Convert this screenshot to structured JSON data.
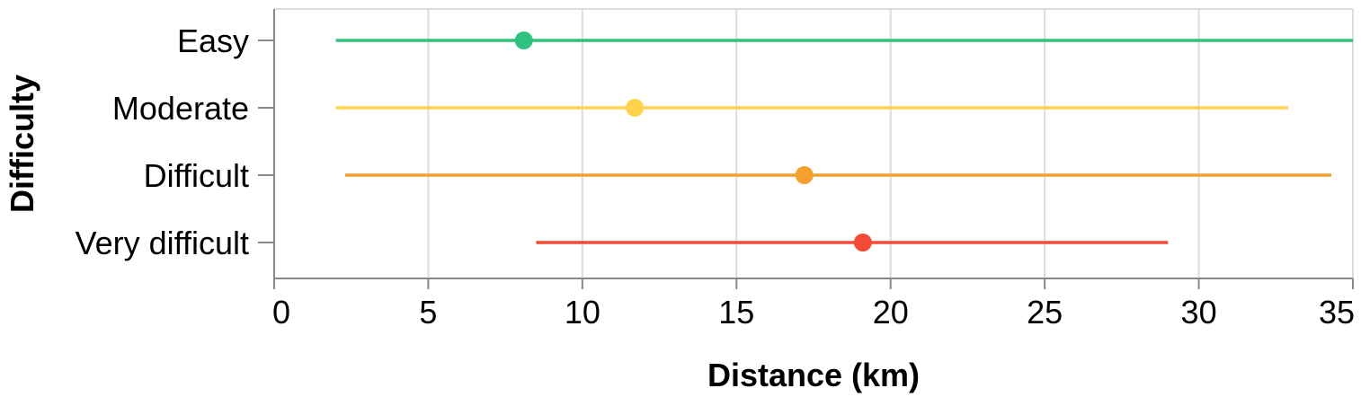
{
  "chart_data": {
    "type": "range-dot",
    "xlabel": "Distance (km)",
    "ylabel": "Difficulty",
    "xlim": [
      0,
      35
    ],
    "x_ticks": [
      0,
      5,
      10,
      15,
      20,
      25,
      30,
      35
    ],
    "grid": true,
    "categories": [
      "Easy",
      "Moderate",
      "Difficult",
      "Very difficult"
    ],
    "series": [
      {
        "category": "Easy",
        "min": 2.0,
        "max": 35.0,
        "value": 8.1,
        "color": "#2ec27e"
      },
      {
        "category": "Moderate",
        "min": 2.0,
        "max": 32.9,
        "value": 11.7,
        "color": "#ffd34f"
      },
      {
        "category": "Difficult",
        "min": 2.3,
        "max": 34.3,
        "value": 17.2,
        "color": "#f6a02d"
      },
      {
        "category": "Very difficult",
        "min": 8.5,
        "max": 29.0,
        "value": 19.1,
        "color": "#f34a36"
      }
    ],
    "colors": {
      "grid": "#dddddd",
      "axis": "#888888",
      "text": "#000000"
    }
  }
}
